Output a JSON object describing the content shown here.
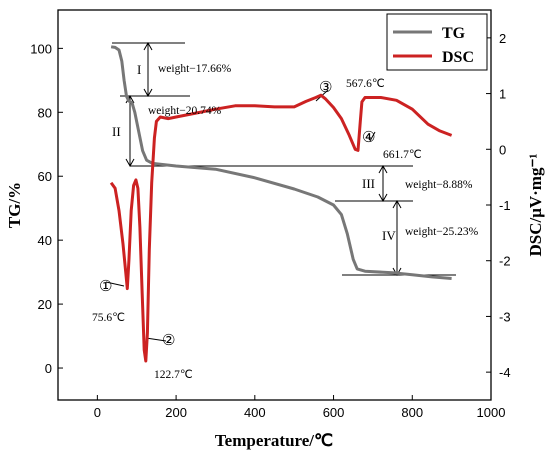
{
  "chart_data": {
    "type": "line",
    "xlabel": "Temperature/℃",
    "ylabel_left": "TG/%",
    "ylabel_right": "DSC/μV·mg⁻¹",
    "xlim": [
      -100,
      1000
    ],
    "ylim_left": [
      -10,
      112
    ],
    "ylim_right": [
      -4.5,
      2.5
    ],
    "x_ticks": [
      0,
      200,
      400,
      600,
      800,
      1000
    ],
    "y_ticks_left": [
      0,
      20,
      40,
      60,
      80,
      100
    ],
    "y_ticks_right": [
      -4,
      -3,
      -2,
      -1,
      0,
      1,
      2
    ],
    "grid": false,
    "legend_position": "top-right",
    "series": [
      {
        "name": "TG",
        "axis": "left",
        "color": "#777777",
        "points": [
          [
            35,
            100.5
          ],
          [
            45,
            100.3
          ],
          [
            55,
            99.5
          ],
          [
            62,
            96
          ],
          [
            68,
            90
          ],
          [
            74,
            85
          ],
          [
            80,
            83.5
          ],
          [
            88,
            83
          ],
          [
            95,
            80
          ],
          [
            105,
            74
          ],
          [
            115,
            68
          ],
          [
            125,
            65
          ],
          [
            140,
            64
          ],
          [
            200,
            63.2
          ],
          [
            300,
            62.2
          ],
          [
            400,
            59.5
          ],
          [
            500,
            56
          ],
          [
            560,
            53.5
          ],
          [
            600,
            51
          ],
          [
            620,
            48
          ],
          [
            635,
            42
          ],
          [
            650,
            34
          ],
          [
            660,
            31
          ],
          [
            680,
            30.3
          ],
          [
            750,
            29.8
          ],
          [
            800,
            29.2
          ],
          [
            850,
            28.5
          ],
          [
            900,
            28
          ]
        ]
      },
      {
        "name": "DSC",
        "axis": "right",
        "color": "#cc2222",
        "points": [
          [
            35,
            -0.6
          ],
          [
            45,
            -0.7
          ],
          [
            55,
            -1.1
          ],
          [
            65,
            -1.7
          ],
          [
            72,
            -2.2
          ],
          [
            76,
            -2.5
          ],
          [
            80,
            -2.0
          ],
          [
            86,
            -1.1
          ],
          [
            92,
            -0.65
          ],
          [
            98,
            -0.55
          ],
          [
            103,
            -0.7
          ],
          [
            108,
            -1.4
          ],
          [
            114,
            -2.6
          ],
          [
            119,
            -3.6
          ],
          [
            123,
            -3.8
          ],
          [
            127,
            -3.3
          ],
          [
            132,
            -1.8
          ],
          [
            138,
            -0.6
          ],
          [
            145,
            0.2
          ],
          [
            150,
            0.5
          ],
          [
            160,
            0.58
          ],
          [
            180,
            0.55
          ],
          [
            200,
            0.58
          ],
          [
            250,
            0.65
          ],
          [
            300,
            0.72
          ],
          [
            350,
            0.78
          ],
          [
            400,
            0.78
          ],
          [
            450,
            0.76
          ],
          [
            500,
            0.76
          ],
          [
            530,
            0.86
          ],
          [
            555,
            0.93
          ],
          [
            568,
            0.97
          ],
          [
            580,
            0.9
          ],
          [
            600,
            0.75
          ],
          [
            620,
            0.55
          ],
          [
            640,
            0.25
          ],
          [
            655,
            0.0
          ],
          [
            662,
            -0.02
          ],
          [
            668,
            0.5
          ],
          [
            672,
            0.85
          ],
          [
            680,
            0.93
          ],
          [
            720,
            0.93
          ],
          [
            760,
            0.88
          ],
          [
            800,
            0.72
          ],
          [
            840,
            0.45
          ],
          [
            870,
            0.33
          ],
          [
            900,
            0.25
          ]
        ]
      }
    ],
    "legend": [
      "TG",
      "DSC"
    ],
    "annotations": {
      "weight_1": "weight−17.66%",
      "weight_2": "weight−20.74%",
      "weight_3": "weight−8.88%",
      "weight_4": "weight−25.23%",
      "stage_1": "I",
      "stage_2": "II",
      "stage_3": "III",
      "stage_4": "IV",
      "peak_1_num": "①",
      "peak_1_temp": "75.6℃",
      "peak_2_num": "②",
      "peak_2_temp": "122.7℃",
      "peak_3_num": "③",
      "peak_3_temp": "567.6℃",
      "peak_4_num": "④",
      "peak_4_temp": "661.7℃"
    }
  }
}
